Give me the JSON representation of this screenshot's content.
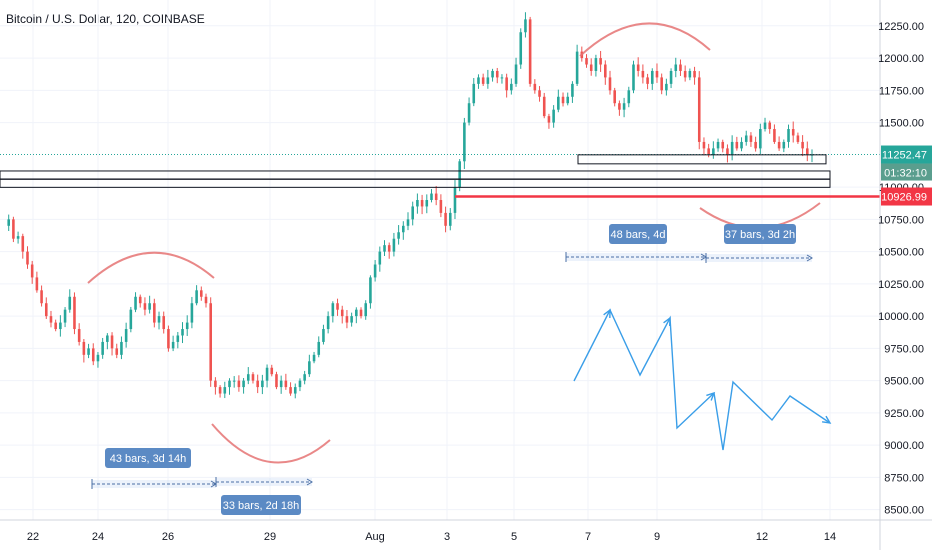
{
  "chart_data": {
    "type": "candlestick",
    "title": "Bitcoin / U.S. Dollar, 120, COINBASE",
    "colors": {
      "up": "#26a69a",
      "down": "#ef5350",
      "drawing": "#3a9ee8",
      "arc": "#e57373",
      "hline": "#f23645",
      "label_bg": "#5b8ac4"
    },
    "x_ticks": [
      "22",
      "24",
      "26",
      "29",
      "Aug",
      "3",
      "5",
      "7",
      "9",
      "12",
      "14"
    ],
    "y_ticks": [
      "12250.00",
      "12000.00",
      "11750.00",
      "11500.00",
      "11000.00",
      "10750.00",
      "10500.00",
      "10250.00",
      "10000.00",
      "9750.00",
      "9500.00",
      "9250.00",
      "9000.00",
      "8750.00",
      "8500.00"
    ],
    "ylim": [
      8420,
      12450
    ],
    "current_price": {
      "value": "11252.47",
      "countdown": "01:32:10",
      "color": "#26a69a"
    },
    "support_line": {
      "value": "10926.99",
      "color": "#f23645"
    },
    "measurements": [
      {
        "label": "43 bars, 3d 14h"
      },
      {
        "label": "33 bars, 2d 18h"
      },
      {
        "label": "48 bars, 4d"
      },
      {
        "label": "37 bars, 3d 2h"
      }
    ],
    "price_path": [
      10700,
      10750,
      10600,
      10620,
      10500,
      10400,
      10300,
      10200,
      10100,
      10000,
      9950,
      9900,
      9950,
      10050,
      10150,
      9900,
      9800,
      9700,
      9750,
      9650,
      9700,
      9800,
      9850,
      9750,
      9700,
      9800,
      9900,
      10050,
      10150,
      10100,
      10050,
      10100,
      9950,
      10000,
      9900,
      9750,
      9800,
      9850,
      9900,
      9950,
      10100,
      10200,
      10150,
      10100,
      9500,
      9450,
      9400,
      9450,
      9500,
      9500,
      9450,
      9500,
      9550,
      9500,
      9450,
      9500,
      9600,
      9550,
      9450,
      9500,
      9450,
      9400,
      9450,
      9500,
      9550,
      9650,
      9700,
      9800,
      9900,
      10000,
      10100,
      10050,
      10000,
      9950,
      10000,
      10050,
      10000,
      10100,
      10300,
      10400,
      10500,
      10550,
      10500,
      10600,
      10650,
      10700,
      10750,
      10850,
      10900,
      10850,
      10900,
      10950,
      10900,
      10800,
      10700,
      10800,
      11000,
      11200,
      11500,
      11650,
      11800,
      11850,
      11800,
      11850,
      11900,
      11850,
      11850,
      11750,
      11800,
      11950,
      12200,
      12300,
      11800,
      11750,
      11700,
      11550,
      11500,
      11600,
      11700,
      11650,
      11700,
      11800,
      12050,
      12000,
      11950,
      11900,
      12000,
      11950,
      11850,
      11750,
      11650,
      11600,
      11650,
      11750,
      11950,
      11900,
      11850,
      11800,
      11900,
      11850,
      11750,
      11800,
      11900,
      11950,
      11900,
      11850,
      11900,
      11850,
      11350,
      11300,
      11250,
      11300,
      11350,
      11300,
      11250,
      11350,
      11300,
      11350,
      11400,
      11350,
      11300,
      11450,
      11500,
      11450,
      11350,
      11300,
      11350,
      11450,
      11400,
      11350,
      11300,
      11250,
      11252
    ]
  }
}
